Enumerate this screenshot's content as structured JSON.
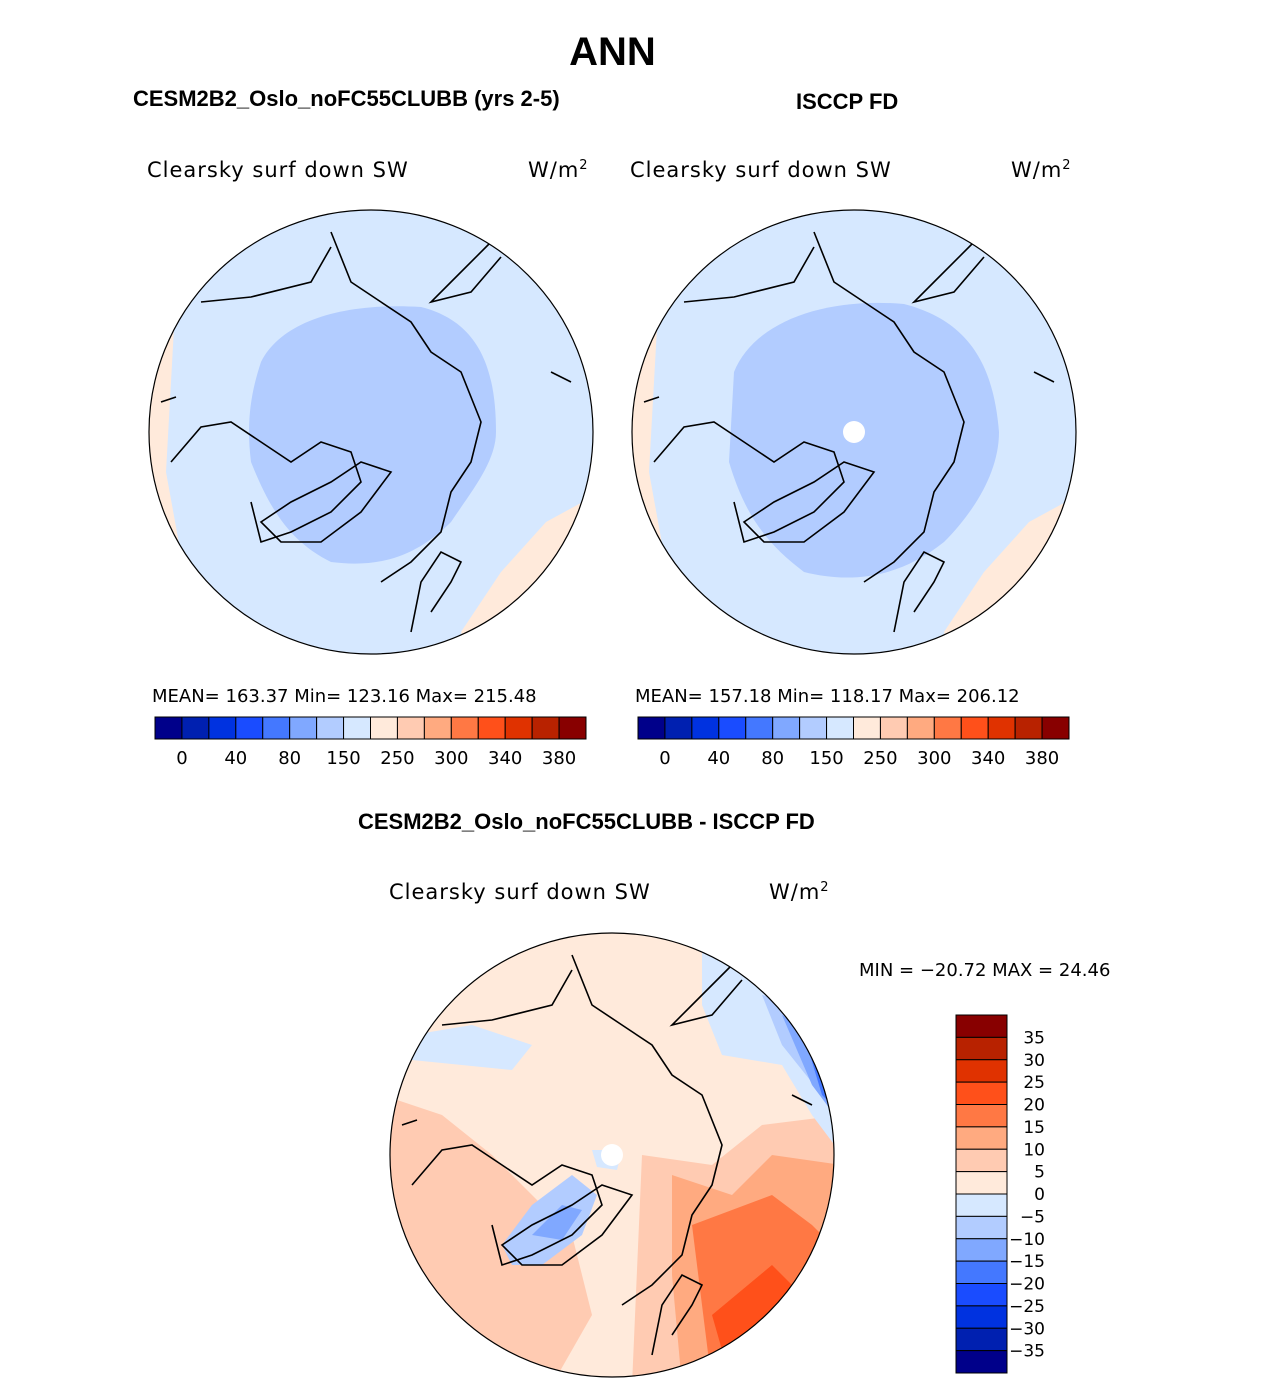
{
  "title": "ANN",
  "panels": [
    {
      "title": "CESM2B2_Oslo_noFC55CLUBB (yrs 2-5)",
      "variable": "Clearsky surf down SW",
      "units": "W/m",
      "units_exp": "2",
      "stats": "MEAN=  163.37   Min=  123.16   Max=  215.48"
    },
    {
      "title": "ISCCP FD",
      "variable": "Clearsky surf down SW",
      "units": "W/m",
      "units_exp": "2",
      "stats": "MEAN=  157.18   Min=  118.17   Max=  206.12"
    },
    {
      "title": "CESM2B2_Oslo_noFC55CLUBB - ISCCP FD",
      "variable": "Clearsky surf down SW",
      "units": "W/m",
      "units_exp": "2",
      "stats": "MIN  =  −20.72  MAX  =   24.46"
    }
  ],
  "chart_data": {
    "type": "heatmap",
    "projection": "north-polar-stereographic",
    "colors": [
      "#00008a",
      "#0020b0",
      "#0032e0",
      "#1a4cff",
      "#4478ff",
      "#80a8ff",
      "#b2ccff",
      "#d6e8ff",
      "#ffeadb",
      "#ffcbb2",
      "#ffaa80",
      "#ff7844",
      "#ff501a",
      "#e03200",
      "#b82200",
      "#880000"
    ],
    "abs_colorbar": {
      "ticks": [
        "0",
        "40",
        "80",
        "150",
        "250",
        "300",
        "340",
        "380"
      ]
    },
    "diff_colorbar": {
      "ticks": [
        "35",
        "30",
        "25",
        "20",
        "15",
        "10",
        "5",
        "0",
        "−5",
        "−10",
        "−15",
        "−20",
        "−25",
        "−30",
        "−35"
      ]
    }
  }
}
